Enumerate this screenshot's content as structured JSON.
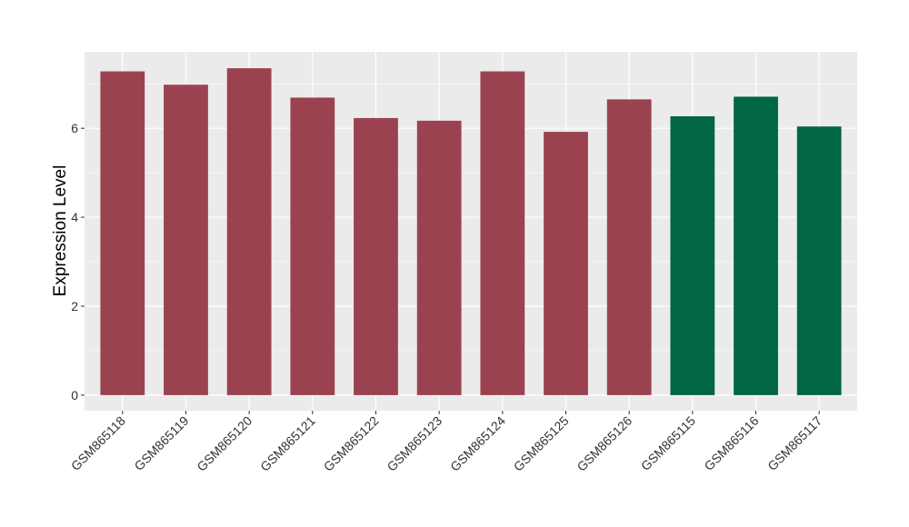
{
  "chart_data": {
    "type": "bar",
    "title": "",
    "xlabel": "",
    "ylabel": "Expression Level",
    "categories": [
      "GSM865118",
      "GSM865119",
      "GSM865120",
      "GSM865121",
      "GSM865122",
      "GSM865123",
      "GSM865124",
      "GSM865125",
      "GSM865126",
      "GSM865115",
      "GSM865116",
      "GSM865117"
    ],
    "values": [
      7.28,
      6.98,
      7.35,
      6.69,
      6.23,
      6.17,
      7.28,
      5.92,
      6.65,
      6.27,
      6.71,
      6.04
    ],
    "bar_colors": [
      "#9b4250",
      "#9b4250",
      "#9b4250",
      "#9b4250",
      "#9b4250",
      "#9b4250",
      "#9b4250",
      "#9b4250",
      "#9b4250",
      "#006644",
      "#006644",
      "#006644"
    ],
    "ylim": [
      -0.35,
      7.72
    ],
    "yticks": [
      0,
      2,
      4,
      6
    ],
    "grid": true,
    "legend": "none",
    "panel_background": "#ebebeb",
    "gridline_color": "#ffffff"
  }
}
